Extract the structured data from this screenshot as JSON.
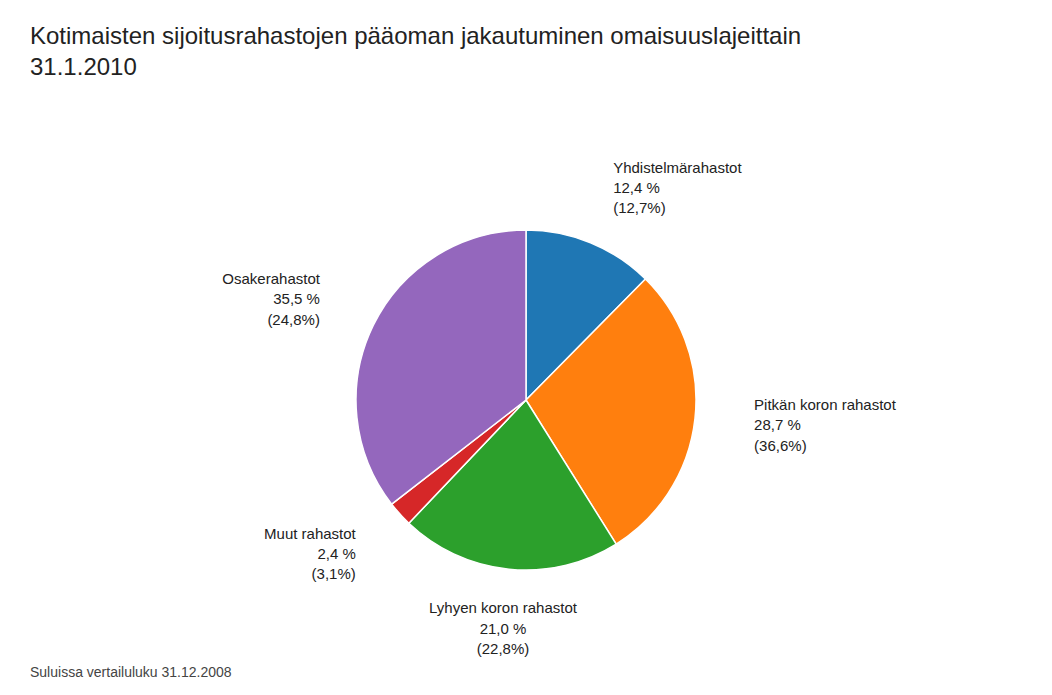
{
  "chart_data": {
    "type": "pie",
    "title": "Kotimaisten sijoitusrahastojen pääoman jakautuminen omaisuuslajeittain\n31.1.2010",
    "categories": [
      "Yhdistelmärahastot",
      "Pitkän koron rahastot",
      "Lyhyen koron rahastot",
      "Muut rahastot",
      "Osakerahastot"
    ],
    "values": [
      12.4,
      28.7,
      21.0,
      2.4,
      35.5
    ],
    "value_labels": [
      "12,4 %",
      "28,7 %",
      "21,0 %",
      "2,4 %",
      "35,5 %"
    ],
    "comparison_labels": [
      "(12,7%)",
      "(36,6%)",
      "(22,8%)",
      "(3,1%)",
      "(24,8%)"
    ],
    "data_labels": true,
    "footnote": "Suluissa vertailuluku 31.12.2008"
  }
}
